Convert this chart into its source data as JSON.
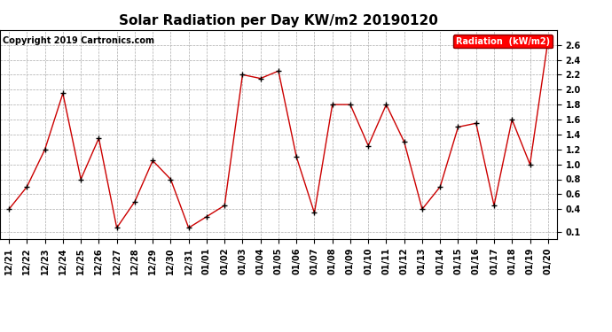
{
  "title": "Solar Radiation per Day KW/m2 20190120",
  "copyright": "Copyright 2019 Cartronics.com",
  "legend_label": "Radiation  (kW/m2)",
  "dates": [
    "12/21",
    "12/22",
    "12/23",
    "12/24",
    "12/25",
    "12/26",
    "12/27",
    "12/28",
    "12/29",
    "12/30",
    "12/31",
    "01/01",
    "01/02",
    "01/03",
    "01/04",
    "01/05",
    "01/06",
    "01/07",
    "01/08",
    "01/09",
    "01/10",
    "01/11",
    "01/12",
    "01/13",
    "01/14",
    "01/15",
    "01/16",
    "01/17",
    "01/18",
    "01/19",
    "01/20"
  ],
  "values": [
    0.4,
    0.7,
    1.2,
    1.95,
    0.8,
    1.35,
    0.15,
    0.5,
    1.05,
    0.8,
    0.15,
    0.3,
    0.45,
    2.2,
    2.15,
    2.25,
    1.1,
    0.35,
    1.8,
    1.8,
    1.25,
    1.8,
    1.3,
    0.4,
    0.7,
    1.5,
    1.55,
    0.45,
    1.6,
    1.0,
    2.65
  ],
  "ylim": [
    0.0,
    2.8
  ],
  "yticks": [
    0.1,
    0.4,
    0.6,
    0.8,
    1.0,
    1.2,
    1.4,
    1.6,
    1.8,
    2.0,
    2.2,
    2.4,
    2.6
  ],
  "line_color": "#cc0000",
  "marker_color": "#000000",
  "bg_color": "#ffffff",
  "grid_color": "#aaaaaa",
  "legend_bg": "#ff0000",
  "legend_text_color": "#ffffff",
  "title_fontsize": 11,
  "copyright_fontsize": 7,
  "tick_fontsize": 7,
  "legend_fontsize": 7
}
